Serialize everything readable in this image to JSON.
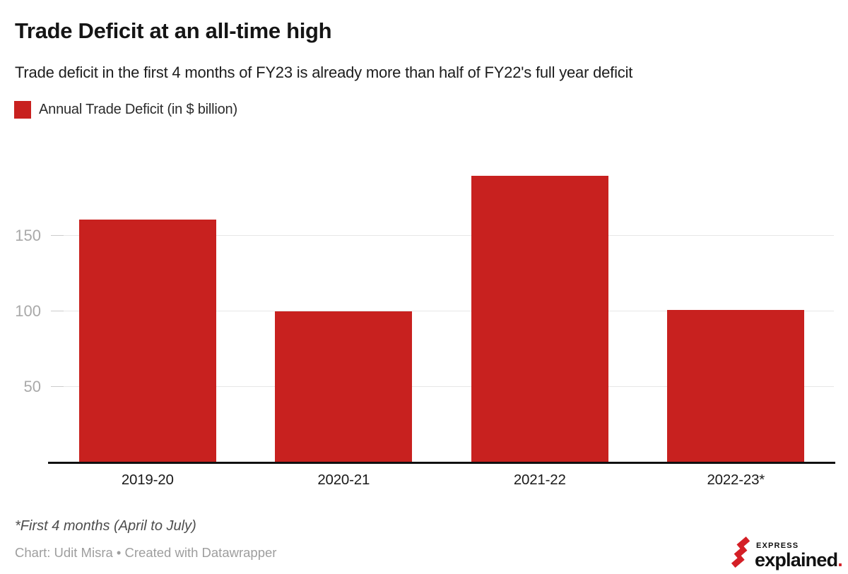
{
  "page": {
    "title": "Trade Deficit at an all-time high",
    "subtitle": "Trade deficit in the first 4 months of FY23 is already more than half of FY22's full year deficit",
    "footnote": "*First 4 months (April to July)",
    "credit": "Chart: Udit Misra • Created with Datawrapper"
  },
  "legend": {
    "label": "Annual Trade Deficit (in $ billion)",
    "swatch_color": "#c8211f"
  },
  "logo": {
    "top_text": "EXPRESS",
    "bottom_text": "explained",
    "dot": ".",
    "icon": "express-slashes-icon",
    "red": "#d41f26",
    "black": "#111111"
  },
  "colors": {
    "bar": "#c8211f",
    "grid": "#e7e7e7",
    "tick": "#cccccc",
    "axis_line": "#101010",
    "y_label": "#a9a9a9",
    "x_label": "#1a1a1a"
  },
  "chart_data": {
    "type": "bar",
    "title": "Trade Deficit at an all-time high",
    "subtitle": "Trade deficit in the first 4 months of FY23 is already more than half of FY22's full year deficit",
    "categories": [
      "2019-20",
      "2020-21",
      "2021-22",
      "2022-23*"
    ],
    "series": [
      {
        "name": "Annual Trade Deficit (in $ billion)",
        "values": [
          161,
          100,
          190,
          101
        ]
      }
    ],
    "xlabel": "",
    "ylabel": "Annual Trade Deficit (in $ billion)",
    "yticks": [
      50,
      100,
      150
    ],
    "ylim": [
      0,
      208
    ],
    "grid": "horizontal",
    "legend_position": "top-left",
    "bar_color": "#c8211f",
    "annotations": [
      "*First 4 months (April to July)"
    ]
  }
}
